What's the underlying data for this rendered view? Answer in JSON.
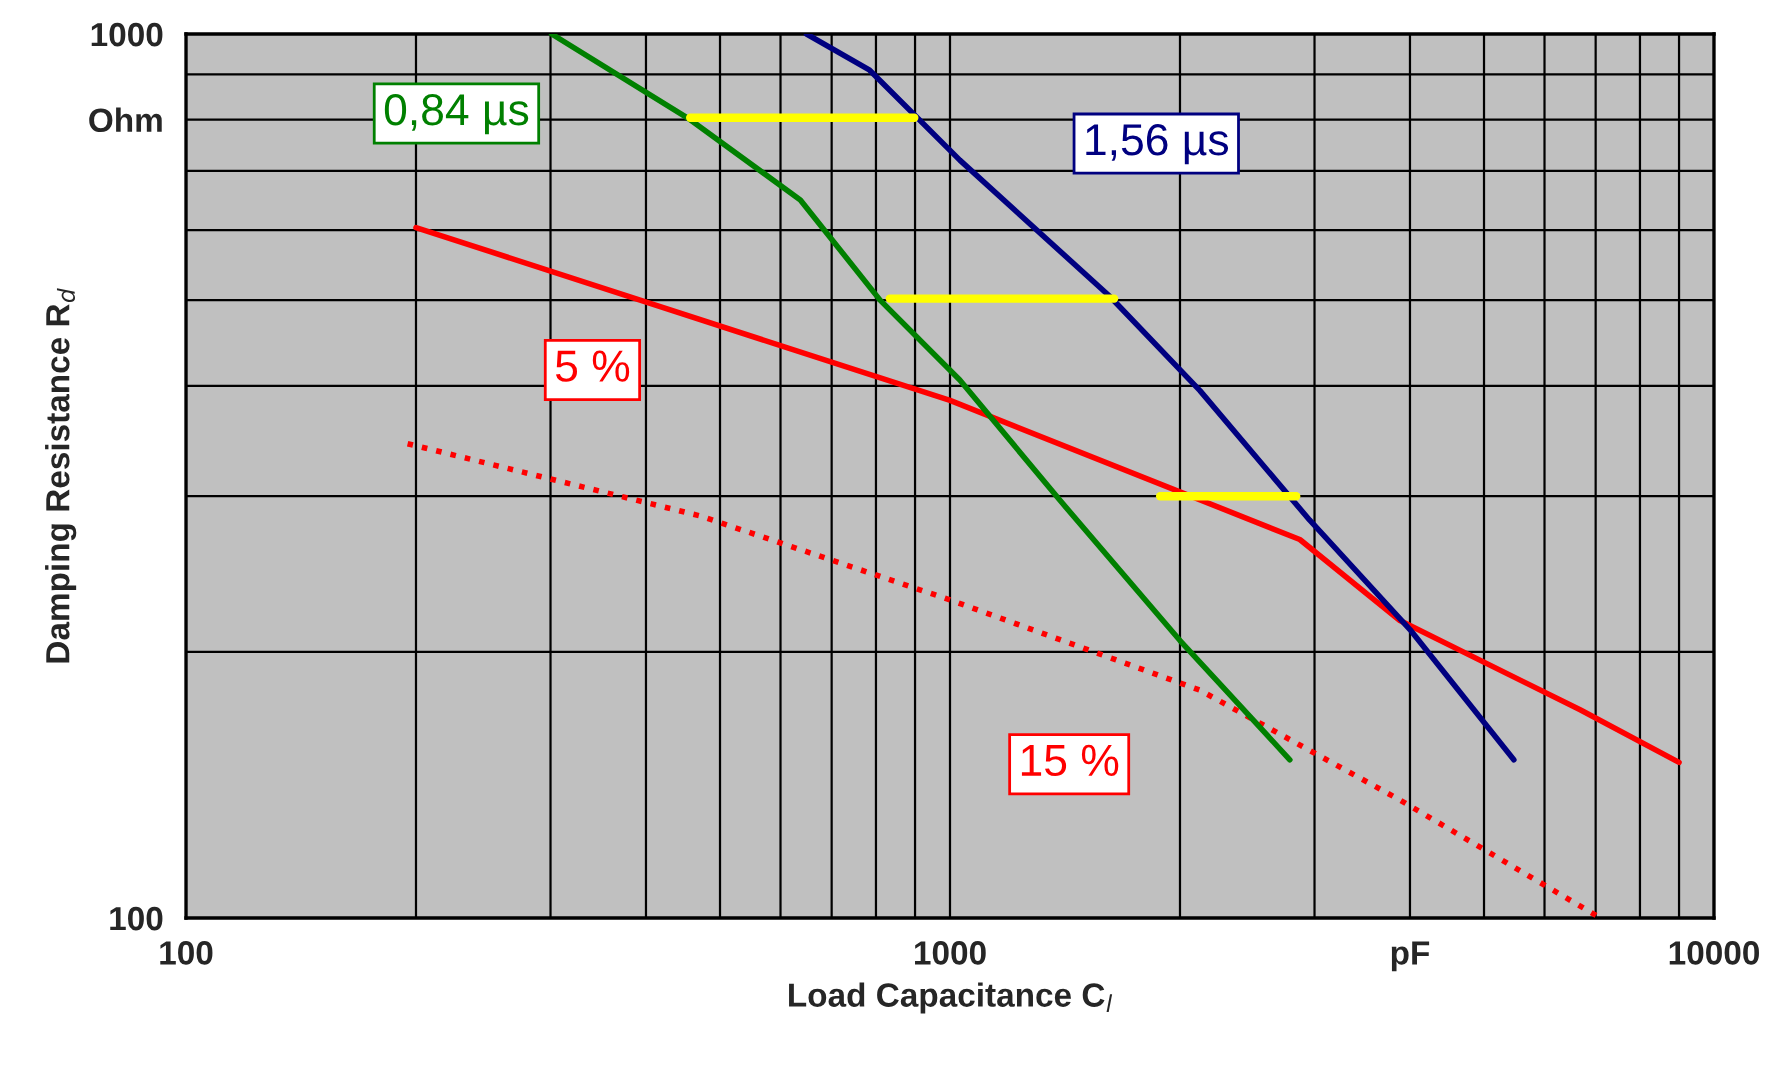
{
  "chart_data": {
    "type": "line",
    "xlabel": "Load Capacitance C$_{l}$",
    "ylabel": "Damping Resistance R$_{d}$",
    "log": "xy",
    "grid": true,
    "xlim": [
      100,
      10000
    ],
    "xticks": [
      100,
      1000,
      {
        "value": 4000,
        "label": "pF"
      },
      10000
    ],
    "ylim": [
      100,
      1000
    ],
    "yticks": [
      100,
      {
        "value": 800,
        "label": "Ohm"
      },
      1000
    ],
    "series": [
      {
        "name": "5 %",
        "color": "#ff0000",
        "x": [
          200,
          393,
          1000,
          2870,
          3880,
          6680,
          9000
        ],
        "values": [
          604,
          500,
          385,
          268,
          217,
          172,
          150
        ]
      },
      {
        "name": "15 %",
        "color": "#ff0000",
        "line_style": "dotted",
        "x": [
          195,
          471,
          1000,
          2124,
          3880,
          7100
        ],
        "values": [
          344,
          285,
          229,
          181,
          136,
          100
        ]
      },
      {
        "name": "0,84 µs",
        "color": "#008000",
        "x": [
          301,
          457,
          637,
          810,
          1030,
          1392,
          2000,
          2785
        ],
        "values": [
          1000,
          800,
          649,
          500,
          406,
          297,
          206,
          151
        ]
      },
      {
        "name": "1,56 µs",
        "color": "#000080",
        "x": [
          649,
          785,
          1030,
          1618,
          2124,
          2955,
          4000,
          5470
        ],
        "values": [
          1000,
          910,
          720,
          505,
          395,
          282,
          212,
          151
        ]
      },
      {
        "color": "#ffff00",
        "x": [
          457,
          898
        ],
        "values": [
          804,
          804
        ]
      },
      {
        "color": "#ffff00",
        "x": [
          834,
          1640
        ],
        "values": [
          502,
          502
        ]
      },
      {
        "color": "#ffff00",
        "x": [
          1884,
          2839
        ],
        "values": [
          300,
          300
        ]
      }
    ]
  }
}
